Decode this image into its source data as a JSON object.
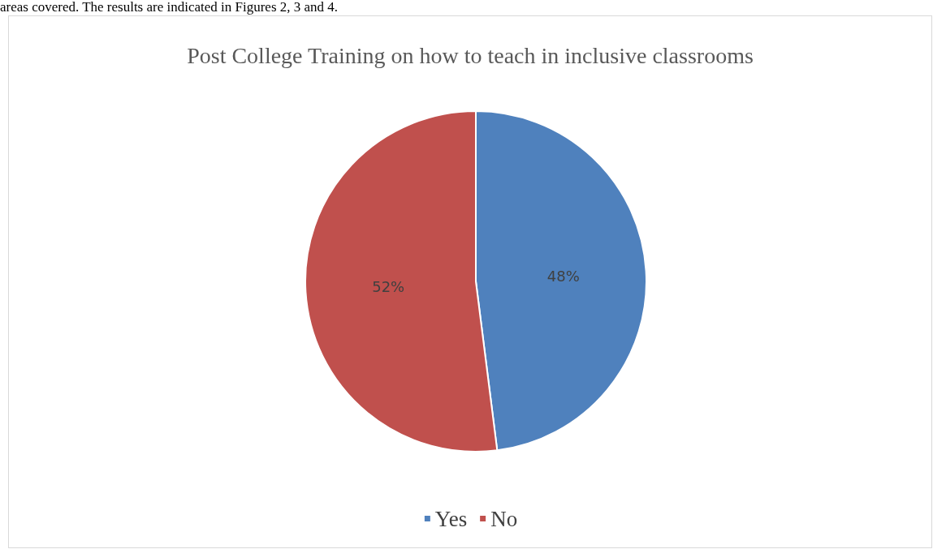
{
  "chart_data": {
    "type": "pie",
    "title": "Post College Training on how to teach in inclusive classrooms",
    "categories": [
      "Yes",
      "No"
    ],
    "values": [
      48,
      52
    ],
    "value_labels": [
      "48%",
      "52%"
    ],
    "colors": [
      "#4f81bd",
      "#c0504d"
    ],
    "legend": "bottom",
    "annotations": [
      "areas covered. The results are indicated in Figures 2, 3 and 4."
    ]
  }
}
